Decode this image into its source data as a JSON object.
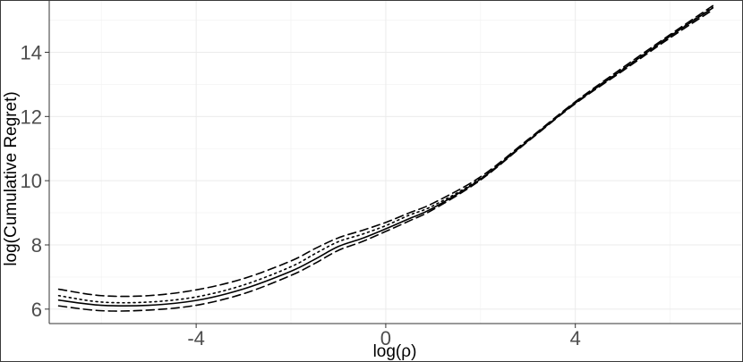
{
  "chart_data": {
    "type": "line",
    "xlabel": "log(ρ)",
    "ylabel": "log(Cumulative Regret)",
    "xlim": [
      -7.1,
      7.5
    ],
    "ylim": [
      5.55,
      15.6
    ],
    "x_ticks": [
      -4,
      0,
      4
    ],
    "x_tick_labels": [
      "-4",
      "0",
      "4"
    ],
    "y_ticks": [
      6,
      8,
      10,
      12,
      14
    ],
    "y_tick_labels": [
      "6",
      "8",
      "10",
      "12",
      "14"
    ],
    "grid": true,
    "legend": "none",
    "series": [
      {
        "style": "dashed-upper",
        "x": [
          -6.9,
          -6.0,
          -5.0,
          -4.0,
          -3.0,
          -2.0,
          -1.5,
          -1.0,
          -0.5,
          0.0,
          0.5,
          1.0,
          2.0,
          3.0,
          4.0,
          5.0,
          6.0,
          6.9
        ],
        "y": [
          6.62,
          6.42,
          6.42,
          6.6,
          6.95,
          7.5,
          7.88,
          8.22,
          8.45,
          8.7,
          9.0,
          9.3,
          10.12,
          11.28,
          12.46,
          13.52,
          14.55,
          15.45
        ]
      },
      {
        "style": "dotted",
        "x": [
          -6.9,
          -6.0,
          -5.0,
          -4.0,
          -3.0,
          -2.0,
          -1.5,
          -1.0,
          -0.5,
          0.0,
          0.5,
          1.0,
          2.0,
          3.0,
          4.0,
          5.0,
          6.0,
          6.9
        ],
        "y": [
          6.42,
          6.22,
          6.22,
          6.38,
          6.75,
          7.32,
          7.72,
          8.1,
          8.33,
          8.6,
          8.93,
          9.22,
          10.07,
          11.25,
          12.44,
          13.48,
          14.52,
          15.4
        ]
      },
      {
        "style": "solid",
        "x": [
          -6.9,
          -6.0,
          -5.0,
          -4.0,
          -3.0,
          -2.0,
          -1.5,
          -1.0,
          -0.5,
          0.0,
          0.5,
          1.0,
          2.0,
          3.0,
          4.0,
          5.0,
          6.0,
          6.9
        ],
        "y": [
          6.28,
          6.12,
          6.12,
          6.27,
          6.63,
          7.18,
          7.55,
          7.95,
          8.2,
          8.5,
          8.82,
          9.15,
          10.05,
          11.24,
          12.42,
          13.46,
          14.5,
          15.38
        ]
      },
      {
        "style": "dashed-lower",
        "x": [
          -6.9,
          -6.0,
          -5.0,
          -4.0,
          -3.0,
          -2.0,
          -1.5,
          -1.0,
          -0.5,
          0.0,
          0.5,
          1.0,
          2.0,
          3.0,
          4.0,
          5.0,
          6.0,
          6.9
        ],
        "y": [
          6.1,
          5.95,
          5.97,
          6.12,
          6.48,
          7.05,
          7.42,
          7.83,
          8.1,
          8.42,
          8.75,
          9.1,
          10.02,
          11.22,
          12.4,
          13.42,
          14.45,
          15.32
        ]
      }
    ]
  }
}
